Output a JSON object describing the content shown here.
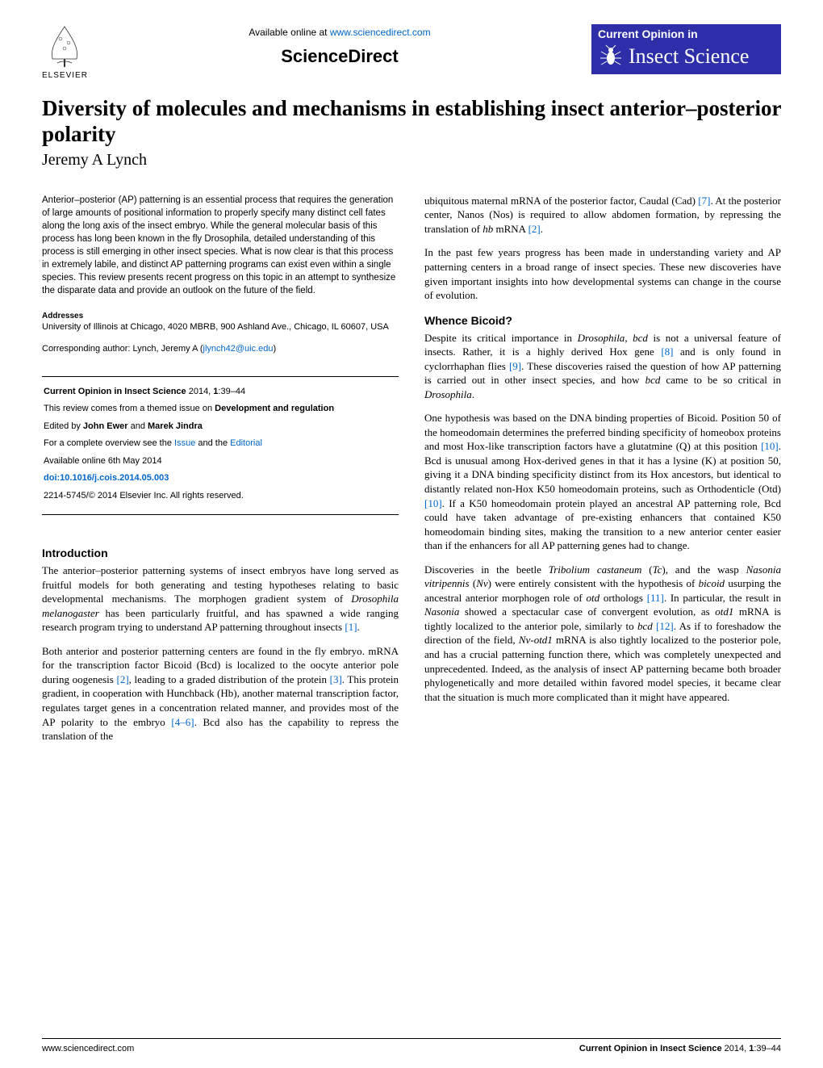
{
  "header": {
    "available_text": "Available online at ",
    "available_url": "www.sciencedirect.com",
    "sciencedirect": "ScienceDirect",
    "elsevier": "ELSEVIER",
    "journal_top": "Current Opinion in",
    "journal_bottom": "Insect Science"
  },
  "title": "Diversity of molecules and mechanisms in establishing insect anterior–posterior polarity",
  "author": "Jeremy A Lynch",
  "abstract": "Anterior–posterior (AP) patterning is an essential process that requires the generation of large amounts of positional information to properly specify many distinct cell fates along the long axis of the insect embryo. While the general molecular basis of this process has long been known in the fly Drosophila, detailed understanding of this process is still emerging in other insect species. What is now clear is that this process in extremely labile, and distinct AP patterning programs can exist even within a single species. This review presents recent progress on this topic in an attempt to synthesize the disparate data and provide an outlook on the future of the field.",
  "addresses_heading": "Addresses",
  "addresses": "University of Illinois at Chicago, 4020 MBRB, 900 Ashland Ave., Chicago, IL 60607, USA",
  "corresponding_label": "Corresponding author: Lynch, Jeremy A (",
  "corresponding_email": "jlynch42@uic.edu",
  "corresponding_close": ")",
  "info_box": {
    "journal_ref": "Current Opinion in Insect Science",
    "journal_ref_suffix": " 2014, ",
    "journal_ref_vol": "1",
    "journal_ref_pages": ":39–44",
    "themed_intro": "This review comes from a themed issue on ",
    "themed_title": "Development and regulation",
    "edited_by_label": "Edited by ",
    "editor1": "John Ewer",
    "editor_and": " and ",
    "editor2": "Marek Jindra",
    "overview_label": "For a complete overview see the ",
    "overview_issue": "Issue",
    "overview_and": " and the ",
    "overview_editorial": "Editorial",
    "available_online": "Available online 6th May 2014",
    "doi": "doi:10.1016/j.cois.2014.05.003",
    "copyright": "2214-5745/© 2014 Elsevier Inc. All rights reserved."
  },
  "sections": {
    "intro_heading": "Introduction",
    "intro_p1": "The anterior–posterior patterning systems of insect embryos have long served as fruitful models for both generating and testing hypotheses relating to basic developmental mechanisms. The morphogen gradient system of Drosophila melanogaster has been particularly fruitful, and has spawned a wide ranging research program trying to understand AP patterning throughout insects [1].",
    "intro_p2": "Both anterior and posterior patterning centers are found in the fly embryo. mRNA for the transcription factor Bicoid (Bcd) is localized to the oocyte anterior pole during oogenesis [2], leading to a graded distribution of the protein [3]. This protein gradient, in cooperation with Hunchback (Hb), another maternal transcription factor, regulates target genes in a concentration related manner, and provides most of the AP polarity to the embryo [4–6]. Bcd also has the capability to repress the translation of the",
    "col2_p1": "ubiquitous maternal mRNA of the posterior factor, Caudal (Cad) [7]. At the posterior center, Nanos (Nos) is required to allow abdomen formation, by repressing the translation of hb mRNA [2].",
    "col2_p2": "In the past few years progress has been made in understanding variety and AP patterning centers in a broad range of insect species. These new discoveries have given important insights into how developmental systems can change in the course of evolution.",
    "whence_heading": "Whence Bicoid?",
    "whence_p1": "Despite its critical importance in Drosophila, bcd is not a universal feature of insects. Rather, it is a highly derived Hox gene [8] and is only found in cyclorrhaphan flies [9]. These discoveries raised the question of how AP patterning is carried out in other insect species, and how bcd came to be so critical in Drosophila.",
    "whence_p2": "One hypothesis was based on the DNA binding properties of Bicoid. Position 50 of the homeodomain determines the preferred binding specificity of homeobox proteins and most Hox-like transcription factors have a glutatmine (Q) at this position [10]. Bcd is unusual among Hox-derived genes in that it has a lysine (K) at position 50, giving it a DNA binding specificity distinct from its Hox ancestors, but identical to distantly related non-Hox K50 homeodomain proteins, such as Orthodenticle (Otd) [10]. If a K50 homeodomain protein played an ancestral AP patterning role, Bcd could have taken advantage of pre-existing enhancers that contained K50 homeodomain binding sites, making the transition to a new anterior center easier than if the enhancers for all AP patterning genes had to change.",
    "whence_p3": "Discoveries in the beetle Tribolium castaneum (Tc), and the wasp Nasonia vitripennis (Nv) were entirely consistent with the hypothesis of bicoid usurping the ancestral anterior morphogen role of otd orthologs [11]. In particular, the result in Nasonia showed a spectacular case of convergent evolution, as otd1 mRNA is tightly localized to the anterior pole, similarly to bcd [12]. As if to foreshadow the direction of the field, Nv-otd1 mRNA is also tightly localized to the posterior pole, and has a crucial patterning function there, which was completely unexpected and unprecedented. Indeed, as the analysis of insect AP patterning became both broader phylogenetically and more detailed within favored model species, it became clear that the situation is much more complicated than it might have appeared."
  },
  "footer": {
    "left": "www.sciencedirect.com",
    "right_journal": "Current Opinion in Insect Science",
    "right_suffix": " 2014, ",
    "right_vol": "1",
    "right_pages": ":39–44"
  },
  "colors": {
    "link": "#0066cc",
    "journal_bg": "#2e2ea8",
    "text": "#000000",
    "bg": "#ffffff"
  }
}
